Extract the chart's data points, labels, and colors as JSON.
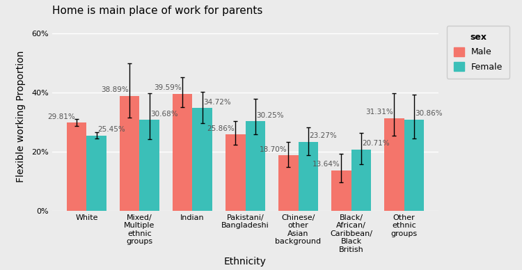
{
  "title": "Home is main place of work for parents",
  "xlabel": "Ethnicity",
  "ylabel": "Flexible working Proportion",
  "categories": [
    "White",
    "Mixed/\nMultiple\nethnic\ngroups",
    "Indian",
    "Pakistani/\nBangladeshi",
    "Chinese/\nother\nAsian\nbackground",
    "Black/\nAfrican/\nCaribbean/\nBlack\nBritish",
    "Other\nethnic\ngroups"
  ],
  "male_values": [
    29.81,
    38.89,
    39.59,
    25.86,
    18.7,
    13.64,
    31.31
  ],
  "female_values": [
    25.45,
    30.68,
    34.72,
    30.25,
    23.27,
    20.71,
    30.86
  ],
  "male_err_low": [
    1.2,
    7.5,
    4.5,
    3.5,
    4.0,
    4.0,
    6.0
  ],
  "male_err_high": [
    1.2,
    11.0,
    5.5,
    4.5,
    4.5,
    5.5,
    8.5
  ],
  "female_err_low": [
    1.0,
    6.5,
    5.0,
    4.5,
    4.5,
    5.0,
    6.5
  ],
  "female_err_high": [
    1.0,
    9.0,
    5.5,
    7.5,
    5.0,
    5.5,
    8.5
  ],
  "male_color": "#F4756B",
  "female_color": "#3BBFB8",
  "ylim": [
    0,
    64
  ],
  "yticks": [
    0,
    20,
    40,
    60
  ],
  "ytick_labels": [
    "0%",
    "20%",
    "40%",
    "60%"
  ],
  "bar_width": 0.38,
  "plot_bg": "#EBEBEB",
  "fig_bg": "#EBEBEB",
  "legend_title": "sex",
  "legend_male": "Male",
  "legend_female": "Female",
  "title_fontsize": 11,
  "axis_label_fontsize": 10,
  "tick_fontsize": 8,
  "annotation_fontsize": 7.5
}
